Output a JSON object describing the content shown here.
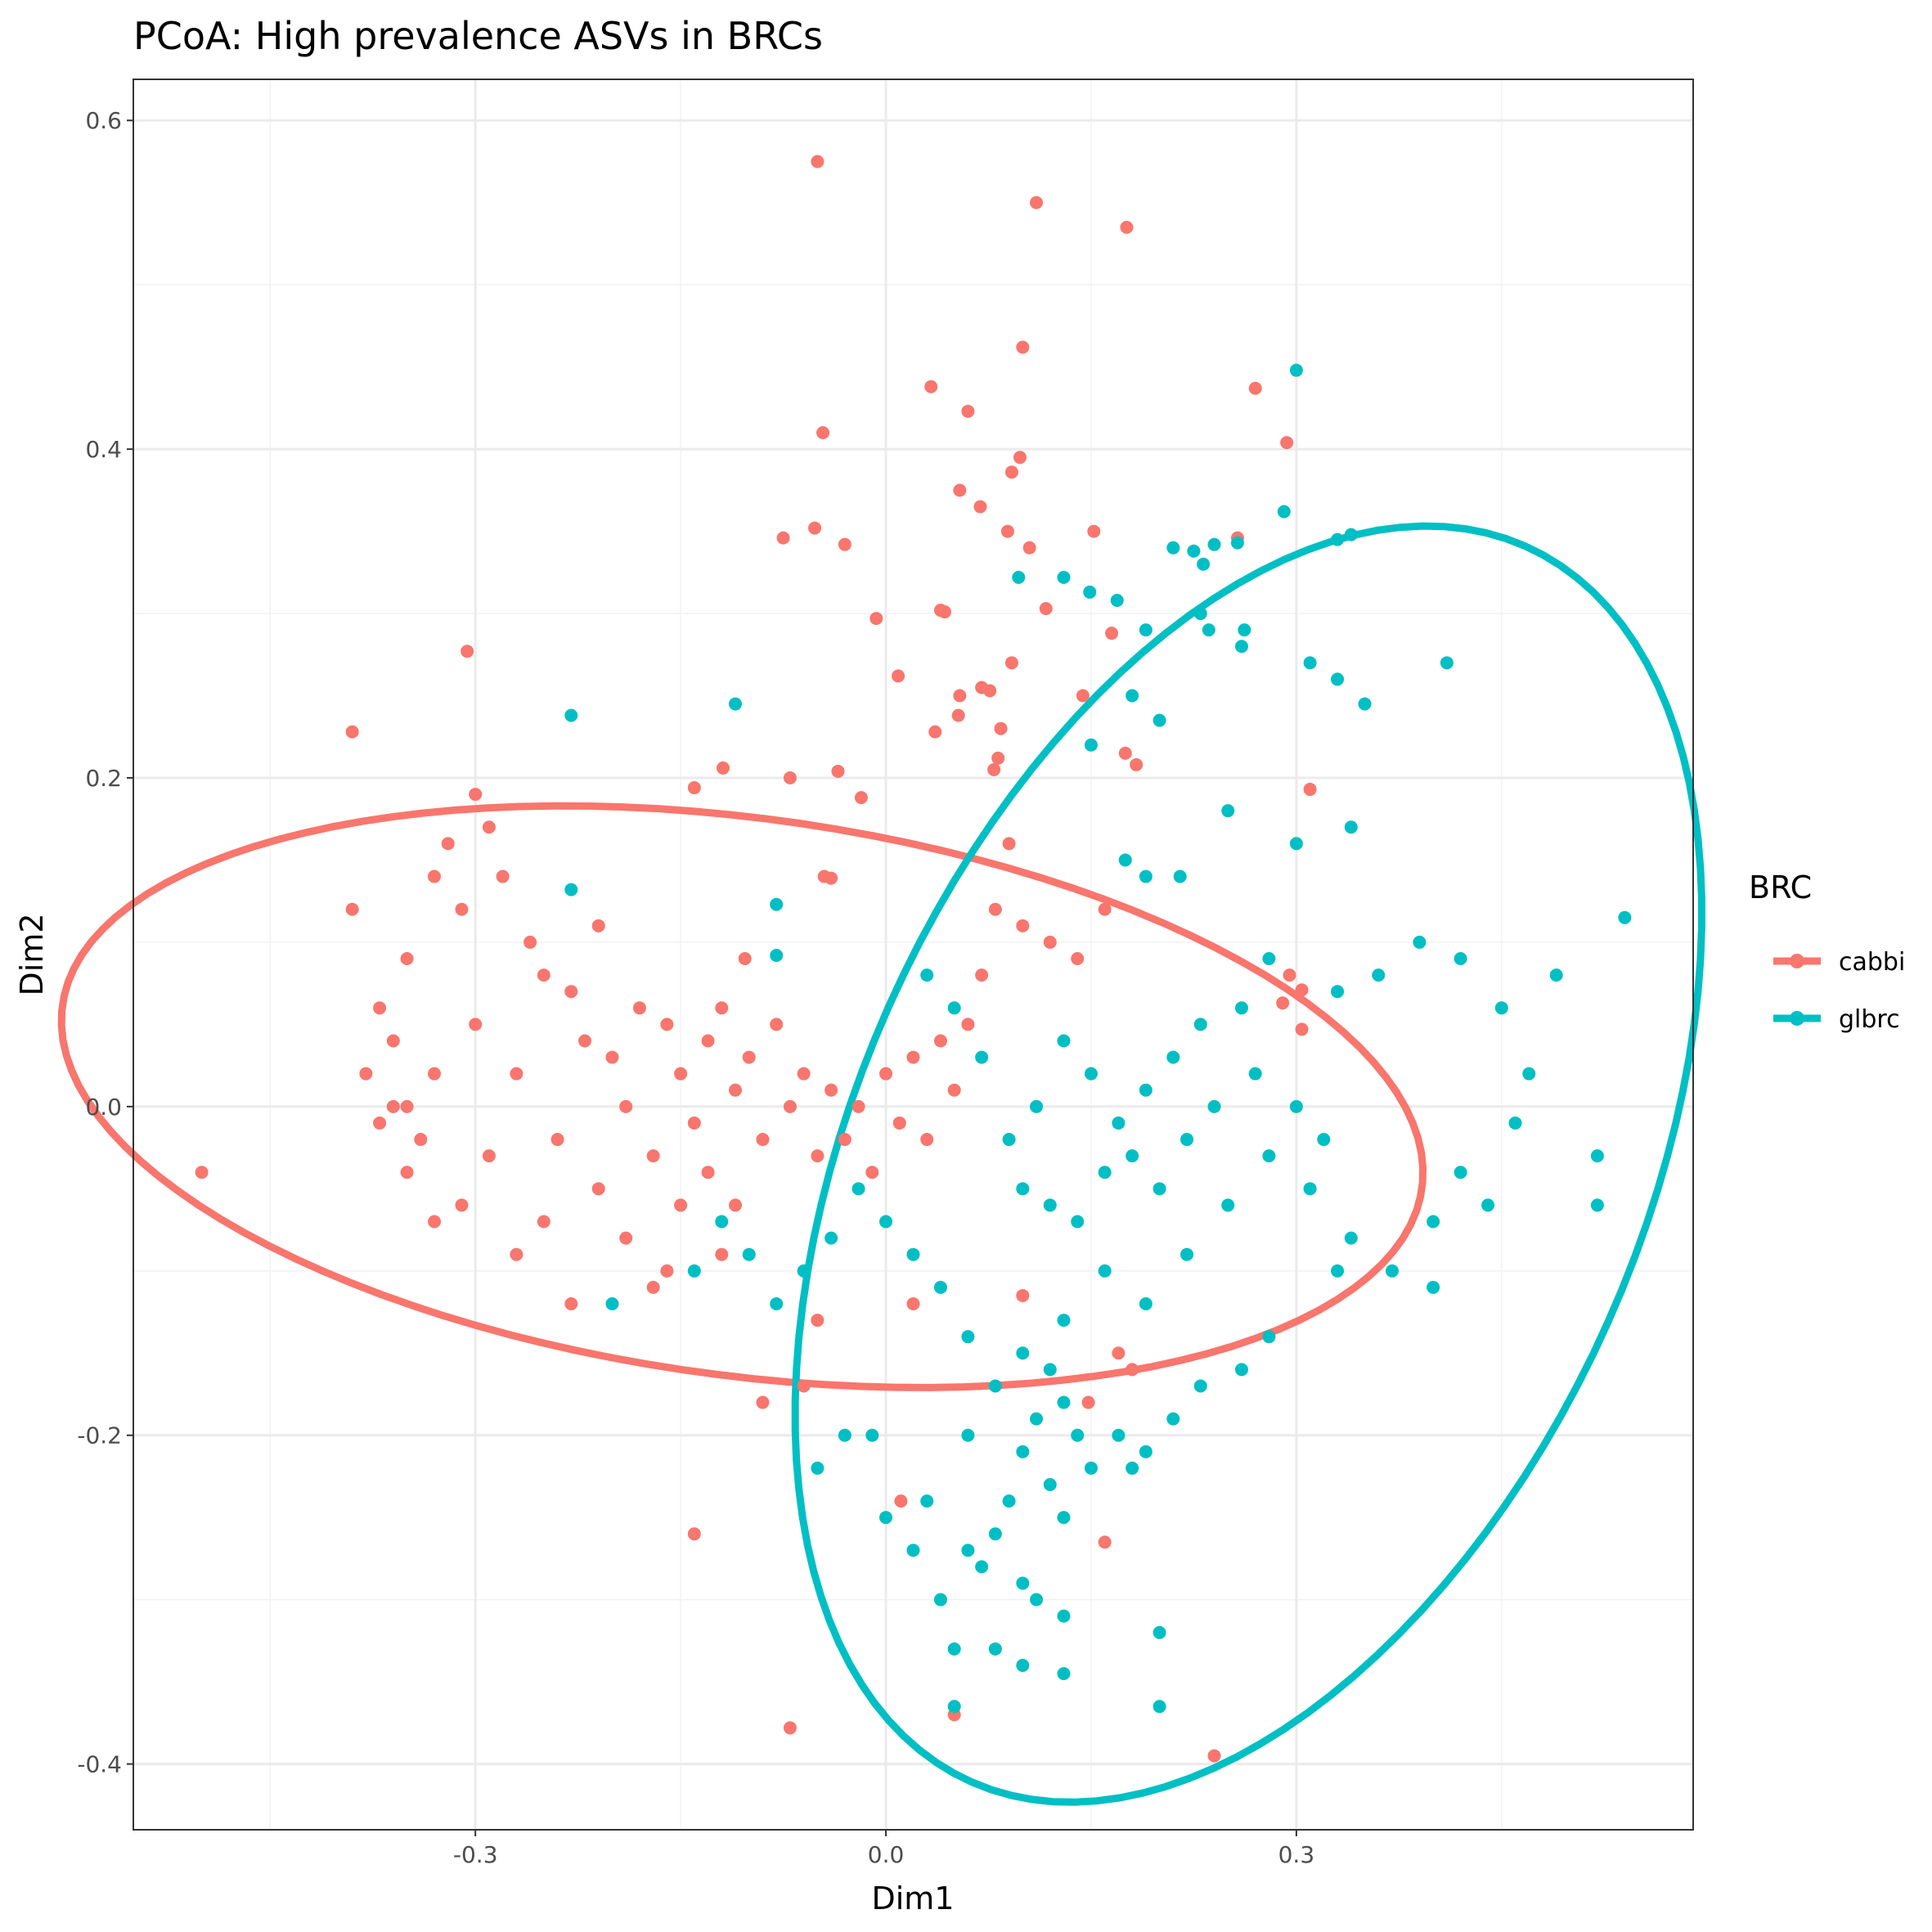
{
  "chart_data": {
    "type": "scatter",
    "title": "PCoA: High prevalence ASVs in BRCs",
    "xlabel": "Dim1",
    "ylabel": "Dim2",
    "xlim": [
      -0.55,
      0.59
    ],
    "ylim": [
      -0.44,
      0.625
    ],
    "x_ticks": [
      {
        "value": -0.3,
        "label": "-0.3"
      },
      {
        "value": 0.0,
        "label": "0.0"
      },
      {
        "value": 0.3,
        "label": "0.3"
      }
    ],
    "y_ticks": [
      {
        "value": -0.4,
        "label": "-0.4"
      },
      {
        "value": -0.2,
        "label": "-0.2"
      },
      {
        "value": 0.0,
        "label": "0.0"
      },
      {
        "value": 0.2,
        "label": "0.2"
      },
      {
        "value": 0.4,
        "label": "0.4"
      },
      {
        "value": 0.6,
        "label": "0.6"
      }
    ],
    "grid": true,
    "legend": {
      "title": "BRC",
      "position": "right"
    },
    "series": [
      {
        "name": "cabbi",
        "color": "#F8766D",
        "ellipse": {
          "cx": -0.105,
          "cy": 0.006,
          "rx": 0.5,
          "ry": 0.17,
          "angle_deg": -6
        },
        "points": [
          [
            -0.05,
            0.575
          ],
          [
            0.11,
            0.55
          ],
          [
            0.176,
            0.535
          ],
          [
            0.1,
            0.462
          ],
          [
            0.033,
            0.438
          ],
          [
            0.06,
            0.423
          ],
          [
            -0.046,
            0.41
          ],
          [
            0.27,
            0.437
          ],
          [
            0.293,
            0.404
          ],
          [
            0.098,
            0.395
          ],
          [
            0.092,
            0.386
          ],
          [
            0.054,
            0.375
          ],
          [
            0.069,
            0.365
          ],
          [
            0.089,
            0.35
          ],
          [
            0.152,
            0.35
          ],
          [
            -0.052,
            0.352
          ],
          [
            -0.075,
            0.346
          ],
          [
            -0.03,
            0.342
          ],
          [
            0.105,
            0.34
          ],
          [
            0.257,
            0.346
          ],
          [
            0.04,
            0.302
          ],
          [
            0.043,
            0.301
          ],
          [
            0.117,
            0.303
          ],
          [
            -0.007,
            0.297
          ],
          [
            0.07,
            0.255
          ],
          [
            0.076,
            0.253
          ],
          [
            0.092,
            0.27
          ],
          [
            0.165,
            0.288
          ],
          [
            0.009,
            0.262
          ],
          [
            0.144,
            0.25
          ],
          [
            0.054,
            0.25
          ],
          [
            0.053,
            0.238
          ],
          [
            0.036,
            0.228
          ],
          [
            0.084,
            0.23
          ],
          [
            0.082,
            0.212
          ],
          [
            0.079,
            0.205
          ],
          [
            0.175,
            0.215
          ],
          [
            0.183,
            0.208
          ],
          [
            -0.39,
            0.228
          ],
          [
            -0.306,
            0.277
          ],
          [
            -0.119,
            0.206
          ],
          [
            -0.14,
            0.194
          ],
          [
            -0.07,
            0.2
          ],
          [
            -0.035,
            0.204
          ],
          [
            -0.018,
            0.188
          ],
          [
            -0.103,
            0.09
          ],
          [
            -0.045,
            0.14
          ],
          [
            -0.04,
            0.139
          ],
          [
            0.31,
            0.193
          ],
          [
            0.295,
            0.08
          ],
          [
            0.304,
            0.071
          ],
          [
            0.304,
            0.047
          ],
          [
            0.29,
            0.063
          ],
          [
            -0.5,
            -0.04
          ],
          [
            -0.14,
            -0.26
          ],
          [
            -0.07,
            -0.378
          ],
          [
            0.05,
            -0.37
          ],
          [
            0.24,
            -0.395
          ],
          [
            -0.09,
            -0.18
          ],
          [
            0.16,
            -0.265
          ],
          [
            0.011,
            -0.24
          ],
          [
            0.17,
            -0.15
          ],
          [
            0.148,
            -0.18
          ],
          [
            0.18,
            -0.16
          ],
          [
            -0.11,
            -0.06
          ],
          [
            -0.12,
            -0.09
          ],
          [
            -0.16,
            -0.1
          ],
          [
            -0.06,
            -0.17
          ],
          [
            -0.05,
            -0.13
          ],
          [
            0.02,
            -0.12
          ],
          [
            0.1,
            -0.115
          ],
          [
            -0.37,
            0.06
          ],
          [
            -0.35,
            0.09
          ],
          [
            -0.33,
            0.02
          ],
          [
            -0.31,
            0.12
          ],
          [
            -0.3,
            0.05
          ],
          [
            -0.29,
            0.17
          ],
          [
            -0.28,
            0.14
          ],
          [
            -0.27,
            0.02
          ],
          [
            -0.26,
            0.1
          ],
          [
            -0.25,
            0.08
          ],
          [
            -0.24,
            -0.02
          ],
          [
            -0.23,
            0.07
          ],
          [
            -0.22,
            0.04
          ],
          [
            -0.21,
            0.11
          ],
          [
            -0.2,
            0.03
          ],
          [
            -0.19,
            0.0
          ],
          [
            -0.18,
            0.06
          ],
          [
            -0.17,
            -0.03
          ],
          [
            -0.16,
            0.05
          ],
          [
            -0.15,
            0.02
          ],
          [
            -0.14,
            -0.01
          ],
          [
            -0.13,
            0.04
          ],
          [
            -0.12,
            0.06
          ],
          [
            -0.11,
            0.01
          ],
          [
            -0.1,
            0.03
          ],
          [
            -0.09,
            -0.02
          ],
          [
            -0.08,
            0.05
          ],
          [
            -0.07,
            0.0
          ],
          [
            -0.06,
            0.02
          ],
          [
            -0.05,
            -0.03
          ],
          [
            -0.04,
            0.01
          ],
          [
            -0.03,
            -0.02
          ],
          [
            -0.02,
            0.0
          ],
          [
            -0.01,
            -0.04
          ],
          [
            0.0,
            0.02
          ],
          [
            0.01,
            -0.01
          ],
          [
            0.02,
            0.03
          ],
          [
            0.03,
            -0.02
          ],
          [
            0.04,
            0.04
          ],
          [
            0.05,
            0.01
          ],
          [
            0.06,
            0.05
          ],
          [
            0.07,
            0.08
          ],
          [
            0.08,
            0.12
          ],
          [
            0.09,
            0.16
          ],
          [
            0.1,
            0.11
          ],
          [
            0.12,
            0.1
          ],
          [
            0.14,
            0.09
          ],
          [
            0.16,
            0.12
          ],
          [
            -0.35,
            -0.04
          ],
          [
            -0.33,
            -0.07
          ],
          [
            -0.31,
            -0.06
          ],
          [
            -0.29,
            -0.03
          ],
          [
            -0.27,
            -0.09
          ],
          [
            -0.25,
            -0.07
          ],
          [
            -0.23,
            -0.12
          ],
          [
            -0.21,
            -0.05
          ],
          [
            -0.19,
            -0.08
          ],
          [
            -0.17,
            -0.11
          ],
          [
            -0.15,
            -0.06
          ],
          [
            -0.13,
            -0.04
          ],
          [
            -0.36,
            0.0
          ],
          [
            -0.34,
            -0.02
          ],
          [
            -0.37,
            -0.01
          ],
          [
            -0.36,
            0.04
          ],
          [
            -0.35,
            0.0
          ],
          [
            -0.38,
            0.02
          ],
          [
            -0.39,
            0.12
          ],
          [
            -0.33,
            0.14
          ],
          [
            -0.32,
            0.16
          ],
          [
            -0.3,
            0.19
          ]
        ]
      },
      {
        "name": "glbrc",
        "color": "#00BFC4",
        "ellipse": {
          "cx": 0.265,
          "cy": -0.035,
          "rx": 0.43,
          "ry": 0.275,
          "angle_deg": 56
        },
        "points": [
          [
            0.3,
            0.448
          ],
          [
            0.291,
            0.362
          ],
          [
            0.34,
            0.348
          ],
          [
            0.33,
            0.345
          ],
          [
            0.21,
            0.34
          ],
          [
            0.24,
            0.342
          ],
          [
            0.257,
            0.343
          ],
          [
            0.225,
            0.338
          ],
          [
            0.232,
            0.33
          ],
          [
            0.13,
            0.322
          ],
          [
            0.097,
            0.322
          ],
          [
            0.149,
            0.313
          ],
          [
            0.169,
            0.308
          ],
          [
            0.23,
            0.3
          ],
          [
            0.236,
            0.29
          ],
          [
            0.262,
            0.29
          ],
          [
            0.31,
            0.27
          ],
          [
            0.33,
            0.26
          ],
          [
            -0.23,
            0.238
          ],
          [
            -0.11,
            0.245
          ],
          [
            0.19,
            0.29
          ],
          [
            0.26,
            0.28
          ],
          [
            0.41,
            0.27
          ],
          [
            0.35,
            0.245
          ],
          [
            0.18,
            0.25
          ],
          [
            0.2,
            0.235
          ],
          [
            0.15,
            0.22
          ],
          [
            -0.23,
            0.132
          ],
          [
            -0.08,
            0.123
          ],
          [
            -0.08,
            0.092
          ],
          [
            0.175,
            0.15
          ],
          [
            0.19,
            0.14
          ],
          [
            0.215,
            0.14
          ],
          [
            0.25,
            0.18
          ],
          [
            0.3,
            0.16
          ],
          [
            0.34,
            0.17
          ],
          [
            0.49,
            0.08
          ],
          [
            0.54,
            0.115
          ],
          [
            0.39,
            0.1
          ],
          [
            0.42,
            0.09
          ],
          [
            0.45,
            0.06
          ],
          [
            0.36,
            0.08
          ],
          [
            0.33,
            0.07
          ],
          [
            0.28,
            0.09
          ],
          [
            0.26,
            0.06
          ],
          [
            0.23,
            0.05
          ],
          [
            0.21,
            0.03
          ],
          [
            0.19,
            0.01
          ],
          [
            0.17,
            -0.01
          ],
          [
            0.15,
            0.02
          ],
          [
            0.13,
            0.04
          ],
          [
            0.11,
            0.0
          ],
          [
            0.09,
            -0.02
          ],
          [
            0.07,
            0.03
          ],
          [
            0.05,
            0.06
          ],
          [
            0.03,
            0.08
          ],
          [
            0.47,
            0.02
          ],
          [
            0.46,
            -0.01
          ],
          [
            0.44,
            -0.06
          ],
          [
            0.52,
            -0.03
          ],
          [
            0.52,
            -0.06
          ],
          [
            0.42,
            -0.04
          ],
          [
            0.4,
            -0.07
          ],
          [
            0.37,
            -0.1
          ],
          [
            0.34,
            -0.08
          ],
          [
            0.31,
            -0.05
          ],
          [
            0.28,
            -0.03
          ],
          [
            0.25,
            -0.06
          ],
          [
            0.22,
            -0.09
          ],
          [
            0.19,
            -0.12
          ],
          [
            0.16,
            -0.1
          ],
          [
            0.13,
            -0.13
          ],
          [
            0.1,
            -0.15
          ],
          [
            0.08,
            -0.17
          ],
          [
            0.06,
            -0.14
          ],
          [
            0.04,
            -0.11
          ],
          [
            0.02,
            -0.09
          ],
          [
            0.0,
            -0.07
          ],
          [
            -0.02,
            -0.05
          ],
          [
            -0.04,
            -0.08
          ],
          [
            -0.06,
            -0.1
          ],
          [
            -0.08,
            -0.12
          ],
          [
            -0.1,
            -0.09
          ],
          [
            -0.12,
            -0.07
          ],
          [
            -0.14,
            -0.1
          ],
          [
            -0.2,
            -0.12
          ],
          [
            0.12,
            -0.16
          ],
          [
            0.13,
            -0.18
          ],
          [
            0.14,
            -0.2
          ],
          [
            0.15,
            -0.22
          ],
          [
            0.11,
            -0.19
          ],
          [
            0.1,
            -0.21
          ],
          [
            0.12,
            -0.23
          ],
          [
            0.13,
            -0.25
          ],
          [
            0.09,
            -0.24
          ],
          [
            0.08,
            -0.26
          ],
          [
            0.07,
            -0.28
          ],
          [
            0.06,
            -0.27
          ],
          [
            0.1,
            -0.29
          ],
          [
            0.11,
            -0.3
          ],
          [
            0.04,
            -0.3
          ],
          [
            0.05,
            -0.33
          ],
          [
            0.08,
            -0.33
          ],
          [
            0.1,
            -0.34
          ],
          [
            0.13,
            -0.31
          ],
          [
            0.13,
            -0.345
          ],
          [
            0.2,
            -0.32
          ],
          [
            0.2,
            -0.365
          ],
          [
            0.05,
            -0.365
          ],
          [
            -0.05,
            -0.22
          ],
          [
            -0.03,
            -0.2
          ],
          [
            -0.01,
            -0.2
          ],
          [
            0.02,
            -0.27
          ],
          [
            0.0,
            -0.25
          ],
          [
            0.03,
            -0.24
          ],
          [
            0.06,
            -0.2
          ],
          [
            0.17,
            -0.2
          ],
          [
            0.18,
            -0.22
          ],
          [
            0.19,
            -0.21
          ],
          [
            0.21,
            -0.19
          ],
          [
            0.23,
            -0.17
          ],
          [
            0.26,
            -0.16
          ],
          [
            0.28,
            -0.14
          ],
          [
            0.33,
            -0.1
          ],
          [
            0.4,
            -0.11
          ],
          [
            0.1,
            -0.05
          ],
          [
            0.12,
            -0.06
          ],
          [
            0.14,
            -0.07
          ],
          [
            0.16,
            -0.04
          ],
          [
            0.18,
            -0.03
          ],
          [
            0.2,
            -0.05
          ],
          [
            0.22,
            -0.02
          ],
          [
            0.24,
            0.0
          ],
          [
            0.27,
            0.02
          ],
          [
            0.3,
            0.0
          ],
          [
            0.32,
            -0.02
          ]
        ]
      }
    ]
  }
}
